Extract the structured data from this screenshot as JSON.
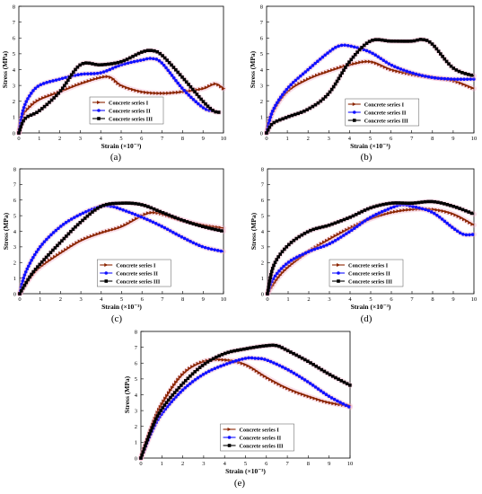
{
  "colors": {
    "series1": "#8B2500",
    "series2": "#1010FF",
    "series3": "#000000",
    "halo": "#F2A7C4"
  },
  "chart_data": [
    {
      "panel_label": "(a)",
      "type": "line",
      "xlabel": "Strain (×10⁻³)",
      "ylabel": "Stress (MPa)",
      "xlim": [
        0,
        10
      ],
      "ylim": [
        0,
        8
      ],
      "xticks": [
        0,
        1,
        2,
        3,
        4,
        5,
        6,
        7,
        8,
        9,
        10
      ],
      "yticks": [
        0,
        1,
        2,
        3,
        4,
        5,
        6,
        7,
        8
      ],
      "legend_position": "bottom-center",
      "series": [
        {
          "name": "Concrete series I",
          "marker": "triangle",
          "x": [
            0,
            0.2,
            0.5,
            1,
            2,
            3,
            4,
            4.5,
            5,
            6,
            7,
            8,
            9,
            9.6,
            10
          ],
          "y": [
            0,
            1.1,
            1.6,
            2.1,
            2.6,
            3.1,
            3.5,
            3.5,
            3.0,
            2.6,
            2.5,
            2.6,
            2.8,
            3.1,
            2.8
          ]
        },
        {
          "name": "Concrete series II",
          "marker": "circle",
          "x": [
            0,
            0.2,
            0.5,
            1,
            2,
            3,
            4,
            5,
            6,
            6.5,
            7,
            8,
            9,
            9.5
          ],
          "y": [
            0,
            1.4,
            2.3,
            3.0,
            3.4,
            3.7,
            3.8,
            4.3,
            4.6,
            4.7,
            4.4,
            2.8,
            1.6,
            1.4
          ]
        },
        {
          "name": "Concrete series III",
          "marker": "square",
          "x": [
            0,
            0.3,
            1,
            2,
            3,
            4,
            5,
            6,
            6.5,
            7,
            8,
            9,
            9.5,
            9.8
          ],
          "y": [
            0,
            0.9,
            1.4,
            2.6,
            4.3,
            4.3,
            4.5,
            5.1,
            5.2,
            4.9,
            3.5,
            2.0,
            1.4,
            1.3
          ]
        }
      ]
    },
    {
      "panel_label": "(b)",
      "type": "line",
      "xlabel": "Strain (×10⁻³)",
      "ylabel": "Stress (MPa)",
      "xlim": [
        0,
        10
      ],
      "ylim": [
        0,
        8
      ],
      "xticks": [
        0,
        1,
        2,
        3,
        4,
        5,
        6,
        7,
        8,
        9,
        10
      ],
      "yticks": [
        0,
        1,
        2,
        3,
        4,
        5,
        6,
        7,
        8
      ],
      "legend_position": "bottom-right",
      "series": [
        {
          "name": "Concrete series I",
          "marker": "triangle",
          "x": [
            0,
            0.3,
            1,
            2,
            3,
            4,
            5,
            6,
            7,
            8,
            9,
            10
          ],
          "y": [
            0,
            1.3,
            2.6,
            3.4,
            3.9,
            4.3,
            4.5,
            4.0,
            3.7,
            3.5,
            3.3,
            2.8
          ]
        },
        {
          "name": "Concrete series II",
          "marker": "circle",
          "x": [
            0,
            0.3,
            1,
            2,
            3,
            3.5,
            4,
            5,
            6,
            7,
            8,
            9,
            10
          ],
          "y": [
            0,
            1.4,
            2.8,
            4.0,
            5.1,
            5.5,
            5.5,
            5.1,
            4.3,
            3.8,
            3.5,
            3.4,
            3.4
          ]
        },
        {
          "name": "Concrete series III",
          "marker": "square",
          "x": [
            0,
            0.3,
            1,
            2,
            3,
            4,
            5,
            6,
            7,
            7.5,
            8,
            9,
            10
          ],
          "y": [
            0,
            0.6,
            1.0,
            1.5,
            2.5,
            4.5,
            5.8,
            5.8,
            5.8,
            5.9,
            5.6,
            4.1,
            3.6
          ]
        }
      ]
    },
    {
      "panel_label": "(c)",
      "type": "line",
      "xlabel": "Strain (×10⁻³)",
      "ylabel": "Stress (MPa)",
      "xlim": [
        0,
        10
      ],
      "ylim": [
        0,
        8
      ],
      "xticks": [
        0,
        1,
        2,
        3,
        4,
        5,
        6,
        7,
        8,
        9,
        10
      ],
      "yticks": [
        0,
        1,
        2,
        3,
        4,
        5,
        6,
        7,
        8
      ],
      "legend_position": "bottom-right",
      "series": [
        {
          "name": "Concrete series I",
          "marker": "triangle",
          "x": [
            0,
            0.5,
            1,
            2,
            3,
            4,
            5,
            6,
            6.5,
            7,
            8,
            9,
            10
          ],
          "y": [
            0,
            1.0,
            1.7,
            2.6,
            3.4,
            3.9,
            4.3,
            5.0,
            5.2,
            5.1,
            4.7,
            4.4,
            4.2
          ]
        },
        {
          "name": "Concrete series II",
          "marker": "circle",
          "x": [
            0,
            0.3,
            1,
            2,
            3,
            4,
            4.5,
            5,
            6,
            7,
            8,
            9,
            10
          ],
          "y": [
            0,
            1.4,
            3.0,
            4.3,
            5.1,
            5.6,
            5.6,
            5.4,
            4.9,
            4.3,
            3.6,
            3.0,
            2.7
          ]
        },
        {
          "name": "Concrete series III",
          "marker": "square",
          "x": [
            0,
            0.5,
            1,
            2,
            3,
            4,
            5,
            6,
            7,
            8,
            9,
            10
          ],
          "y": [
            0,
            1.1,
            1.9,
            3.3,
            4.6,
            5.6,
            5.8,
            5.7,
            5.2,
            4.7,
            4.3,
            4.0
          ]
        }
      ]
    },
    {
      "panel_label": "(d)",
      "type": "line",
      "xlabel": "Strain (×10⁻³)",
      "ylabel": "Stress (MPa)",
      "xlim": [
        0,
        10
      ],
      "ylim": [
        0,
        8
      ],
      "xticks": [
        0,
        1,
        2,
        3,
        4,
        5,
        6,
        7,
        8,
        9,
        10
      ],
      "yticks": [
        0,
        1,
        2,
        3,
        4,
        5,
        6,
        7,
        8
      ],
      "legend_position": "bottom-left",
      "series": [
        {
          "name": "Concrete series  I",
          "marker": "triangle",
          "x": [
            0,
            0.5,
            1,
            2,
            3,
            4,
            5,
            6,
            7,
            8,
            9,
            10
          ],
          "y": [
            0,
            1.0,
            1.7,
            2.7,
            3.5,
            4.2,
            4.8,
            5.2,
            5.4,
            5.4,
            5.1,
            4.4
          ]
        },
        {
          "name": "Concrete series  II",
          "marker": "circle",
          "x": [
            0,
            0.3,
            1,
            2,
            3,
            4,
            5,
            6,
            6.5,
            7,
            8,
            9,
            9.5,
            10
          ],
          "y": [
            0,
            1.0,
            2.0,
            2.7,
            3.2,
            4.0,
            4.9,
            5.5,
            5.7,
            5.6,
            5.2,
            4.2,
            3.8,
            3.8
          ]
        },
        {
          "name": "Concrete series  III",
          "marker": "square",
          "x": [
            0,
            0.3,
            1,
            2,
            3,
            4,
            5,
            6,
            7,
            8,
            9,
            10
          ],
          "y": [
            0,
            1.8,
            3.1,
            4.0,
            4.4,
            4.9,
            5.5,
            5.8,
            5.8,
            5.9,
            5.6,
            5.1
          ]
        }
      ]
    },
    {
      "panel_label": "(e)",
      "type": "line",
      "xlabel": "Strain (×10⁻³)",
      "ylabel": "Stress (MPa)",
      "xlim": [
        0,
        10
      ],
      "ylim": [
        0,
        8
      ],
      "xticks": [
        0,
        1,
        2,
        3,
        4,
        5,
        6,
        7,
        8,
        9,
        10
      ],
      "yticks": [
        0,
        1,
        2,
        3,
        4,
        5,
        6,
        7,
        8
      ],
      "legend_position": "bottom-right",
      "series": [
        {
          "name": "Concrete series I",
          "marker": "triangle",
          "x": [
            0,
            0.5,
            1,
            2,
            3,
            4,
            5,
            6,
            7,
            8,
            9,
            10
          ],
          "y": [
            0,
            1.9,
            3.4,
            5.3,
            6.1,
            6.2,
            5.9,
            5.1,
            4.4,
            3.9,
            3.5,
            3.3
          ]
        },
        {
          "name": "Concrete series II",
          "marker": "circle",
          "x": [
            0,
            0.5,
            1,
            2,
            3,
            4,
            5,
            5.5,
            6,
            7,
            8,
            9,
            10
          ],
          "y": [
            0,
            1.6,
            2.8,
            4.3,
            5.3,
            5.9,
            6.3,
            6.3,
            6.2,
            5.6,
            4.8,
            3.9,
            3.2
          ]
        },
        {
          "name": "Concrete series III",
          "marker": "square",
          "x": [
            0,
            0.5,
            1,
            2,
            3,
            4,
            5,
            6,
            6.5,
            7,
            8,
            9,
            10
          ],
          "y": [
            0,
            1.8,
            3.1,
            4.7,
            5.9,
            6.6,
            6.9,
            7.1,
            7.1,
            6.8,
            6.1,
            5.3,
            4.6
          ]
        }
      ]
    }
  ]
}
